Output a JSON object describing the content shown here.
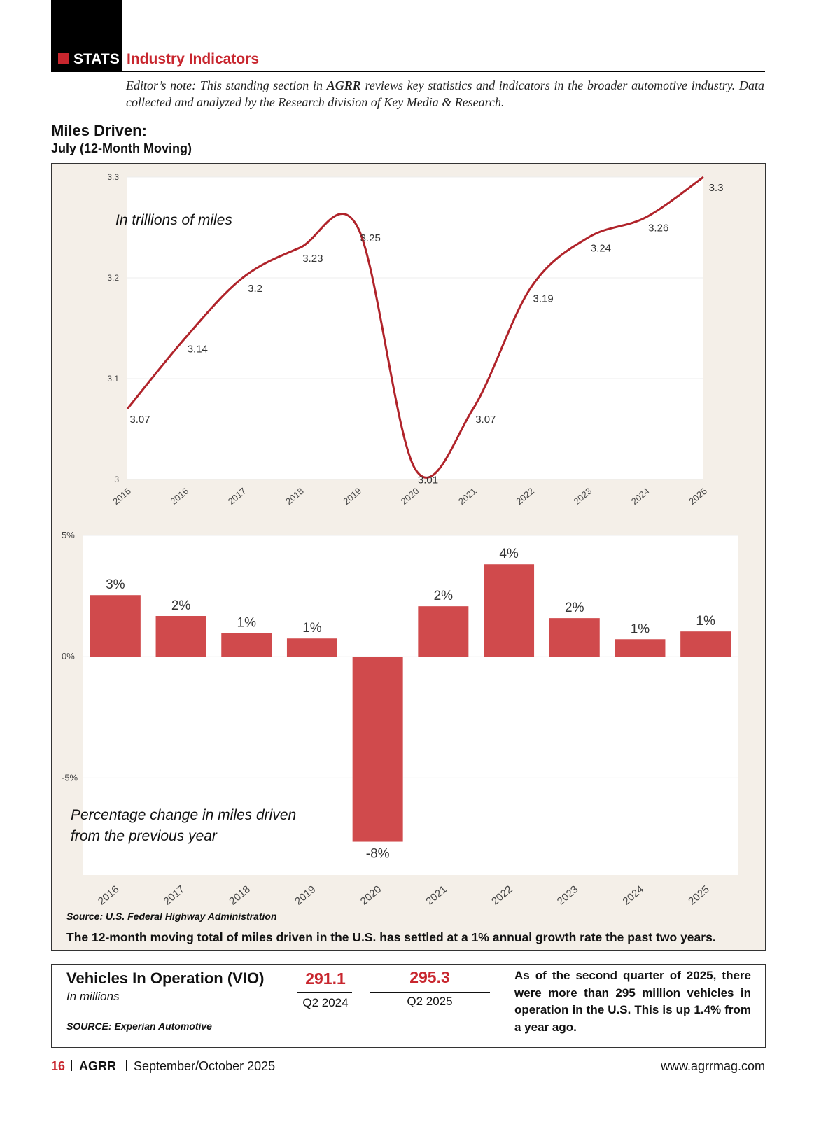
{
  "header": {
    "section": "STATS",
    "title": "Industry Indicators",
    "note_before": "Editor’s note: This standing section in",
    "note_brand": "AGRR",
    "note_after": "reviews key statistics and indicators in the broader automotive industry. Data collected and analyzed by the Research division of Key Media & Research."
  },
  "section": {
    "title": "Miles Driven:",
    "subtitle": "July (12-Month Moving)"
  },
  "chart_data": [
    {
      "type": "line",
      "annotation": "In trillions of miles",
      "categories": [
        "2015",
        "2016",
        "2017",
        "2018",
        "2019",
        "2020",
        "2021",
        "2022",
        "2023",
        "2024",
        "2025"
      ],
      "values": [
        3.07,
        3.14,
        3.2,
        3.23,
        3.25,
        3.01,
        3.07,
        3.19,
        3.24,
        3.26,
        3.3
      ],
      "color": "#b0232a",
      "ylim": [
        3,
        3.3
      ],
      "yticks": [
        3,
        3.1,
        3.2,
        3.3
      ],
      "grid": true
    },
    {
      "type": "bar",
      "annotation": [
        "Percentage change in miles driven",
        "from the previous year"
      ],
      "categories": [
        "2016",
        "2017",
        "2018",
        "2019",
        "2020",
        "2021",
        "2022",
        "2023",
        "2024",
        "2025"
      ],
      "values": [
        2.54,
        1.68,
        0.98,
        0.75,
        -7.63,
        2.08,
        3.81,
        1.59,
        0.72,
        1.04
      ],
      "value_labels": [
        "3%",
        "2%",
        "1%",
        "1%",
        "-8%",
        "2%",
        "4%",
        "2%",
        "1%",
        "1%"
      ],
      "color": "#d04a4c",
      "ylim": [
        -9,
        5
      ],
      "yticks": [
        {
          "value": 5,
          "label": "5%"
        },
        {
          "value": 0,
          "label": "0%"
        },
        {
          "value": -5,
          "label": "-5%"
        }
      ],
      "grid": true
    }
  ],
  "source": "Source: U.S. Federal Highway Administration",
  "caption": "The 12-month moving total of miles driven in the U.S. has settled at a 1% annual growth rate the past two years.",
  "vio": {
    "title": "Vehicles In Operation (VIO)",
    "unit": "In millions",
    "source": "SOURCE: Experian Automotive",
    "items": [
      {
        "value": "291.1",
        "label": "Q2 2024"
      },
      {
        "value": "295.3",
        "label": "Q2 2025"
      }
    ],
    "text": "As of the second quarter of 2025, there were more than 295 million vehicles in operation in the U.S. This is up 1.4% from a year ago."
  },
  "footer": {
    "page": "16",
    "brand": "AGRR",
    "issue": "September/October 2025",
    "url": "www.agrrmag.com"
  }
}
